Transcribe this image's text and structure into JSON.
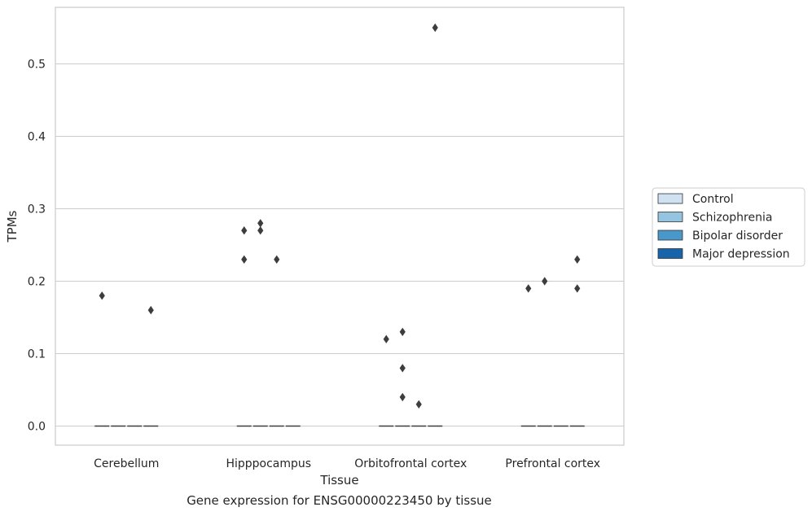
{
  "chart_data": {
    "type": "box",
    "xlabel": "Tissue",
    "ylabel": "TPMs",
    "caption": "Gene expression for ENSG00000223450 by tissue",
    "ylim": [
      -0.028,
      0.58
    ],
    "yticks": [
      0.0,
      0.1,
      0.2,
      0.3,
      0.4,
      0.5
    ],
    "grid": true,
    "legend_position": "right",
    "categories": [
      "Cerebellum",
      "Hipppocampus",
      "Orbitofrontal cortex",
      "Prefrontal cortex"
    ],
    "series": [
      {
        "name": "Control",
        "color": "#d0e1f2"
      },
      {
        "name": "Schizophrenia",
        "color": "#94c4df"
      },
      {
        "name": "Bipolar disorder",
        "color": "#4a98c9"
      },
      {
        "name": "Major depression",
        "color": "#1764ab"
      }
    ],
    "median_value": 0.0,
    "outliers": [
      {
        "category": 0,
        "series": 0,
        "values": [
          0.18
        ]
      },
      {
        "category": 0,
        "series": 3,
        "values": [
          0.16
        ]
      },
      {
        "category": 1,
        "series": 0,
        "values": [
          0.27,
          0.23
        ]
      },
      {
        "category": 1,
        "series": 1,
        "values": [
          0.28,
          0.27
        ]
      },
      {
        "category": 1,
        "series": 2,
        "values": [
          0.23
        ]
      },
      {
        "category": 2,
        "series": 0,
        "values": [
          0.12
        ]
      },
      {
        "category": 2,
        "series": 1,
        "values": [
          0.13,
          0.08,
          0.04
        ]
      },
      {
        "category": 2,
        "series": 2,
        "values": [
          0.03
        ]
      },
      {
        "category": 2,
        "series": 3,
        "values": [
          0.55
        ]
      },
      {
        "category": 3,
        "series": 0,
        "values": [
          0.19
        ]
      },
      {
        "category": 3,
        "series": 1,
        "values": [
          0.2
        ]
      },
      {
        "category": 3,
        "series": 3,
        "values": [
          0.23,
          0.19
        ]
      }
    ]
  }
}
